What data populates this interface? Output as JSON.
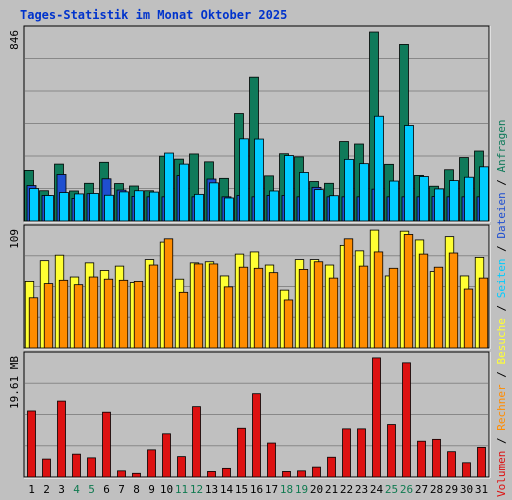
{
  "chart_data": {
    "type": "bar",
    "title": "Tages-Statistik im Monat Oktober 2025",
    "categories": [
      "1",
      "2",
      "3",
      "4",
      "5",
      "6",
      "7",
      "8",
      "9",
      "10",
      "11",
      "12",
      "13",
      "14",
      "15",
      "16",
      "17",
      "18",
      "19",
      "20",
      "21",
      "22",
      "23",
      "24",
      "25",
      "26",
      "27",
      "28",
      "29",
      "30",
      "31"
    ],
    "weekend_days": [
      "4",
      "5",
      "11",
      "12",
      "18",
      "19",
      "25",
      "26"
    ],
    "colors": {
      "anfragen": "#0f7a5a",
      "dateien": "#1f4fd0",
      "seiten": "#00ccff",
      "besuche": "#ffff33",
      "rechner": "#ff8c00",
      "volumen": "#dd1111",
      "title": "#0033cc",
      "weekend_label": "#107a50",
      "background": "#c0c0c0",
      "grid": "#888888"
    },
    "legend_labels": [
      {
        "key": "volumen",
        "label": "Volumen"
      },
      {
        "key": "rechner",
        "label": "Rechner"
      },
      {
        "key": "besuche",
        "label": "Besuche"
      },
      {
        "key": "seiten",
        "label": "Seiten"
      },
      {
        "key": "dateien",
        "label": "Dateien"
      },
      {
        "key": "anfragen",
        "label": "Anfragen"
      }
    ],
    "legend_separator": "/",
    "panels": [
      {
        "id": "requests",
        "max_label": "846",
        "ylim": [
          0,
          846
        ],
        "series": [
          {
            "name": "Anfragen",
            "key": "anfragen",
            "values": [
              224,
              134,
              252,
              133,
              167,
              260,
              166,
              155,
              134,
              287,
              274,
              297,
              262,
              189,
              476,
              637,
              200,
              298,
              284,
              175,
              167,
              352,
              341,
              837,
              251,
              782,
              202,
              154,
              227,
              281,
              310
            ]
          },
          {
            "name": "Dateien",
            "key": "dateien",
            "values": [
              157,
              113,
              206,
              100,
              121,
              187,
              137,
              109,
              107,
              107,
              201,
              107,
              186,
              107,
              113,
              107,
              113,
              113,
              107,
              149,
              107,
              107,
              107,
              141,
              107,
              107,
              107,
              108,
              107,
              107,
              107
            ]
          },
          {
            "name": "Seiten",
            "key": "seiten",
            "values": [
              144,
              113,
              126,
              120,
              122,
              114,
              129,
              134,
              128,
              301,
              252,
              118,
              169,
              102,
              364,
              363,
              133,
              290,
              215,
              139,
              112,
              273,
              254,
              464,
              177,
              423,
              197,
              142,
              179,
              194,
              240
            ]
          }
        ]
      },
      {
        "id": "visits",
        "max_label": "109",
        "ylim": [
          0,
          109
        ],
        "series": [
          {
            "name": "Besuche",
            "key": "besuche",
            "values": [
              61,
              80,
              85,
              65,
              78,
              71,
              75,
              60,
              81,
              97,
              63,
              78,
              79,
              66,
              86,
              88,
              76,
              53,
              81,
              81,
              76,
              94,
              89,
              108,
              66,
              107,
              99,
              70,
              102,
              66,
              83
            ]
          },
          {
            "name": "Rechner",
            "key": "rechner",
            "values": [
              46,
              59,
              62,
              58,
              65,
              63,
              62,
              61,
              76,
              100,
              51,
              77,
              77,
              56,
              74,
              73,
              69,
              44,
              72,
              79,
              64,
              100,
              75,
              88,
              73,
              104,
              86,
              74,
              87,
              54,
              64
            ]
          }
        ]
      },
      {
        "id": "volume",
        "max_label": "19.61 MB",
        "ylim": [
          0,
          19.61
        ],
        "series": [
          {
            "name": "Volumen",
            "key": "volumen",
            "values": [
              10.7,
              2.9,
              12.3,
              3.7,
              3.1,
              10.5,
              1.0,
              0.6,
              4.4,
              7.0,
              3.3,
              11.4,
              0.9,
              1.4,
              7.9,
              13.5,
              5.5,
              0.9,
              1.0,
              1.6,
              3.2,
              7.8,
              7.8,
              19.3,
              8.5,
              18.5,
              5.8,
              6.1,
              4.1,
              2.3,
              4.8
            ]
          }
        ]
      }
    ]
  }
}
